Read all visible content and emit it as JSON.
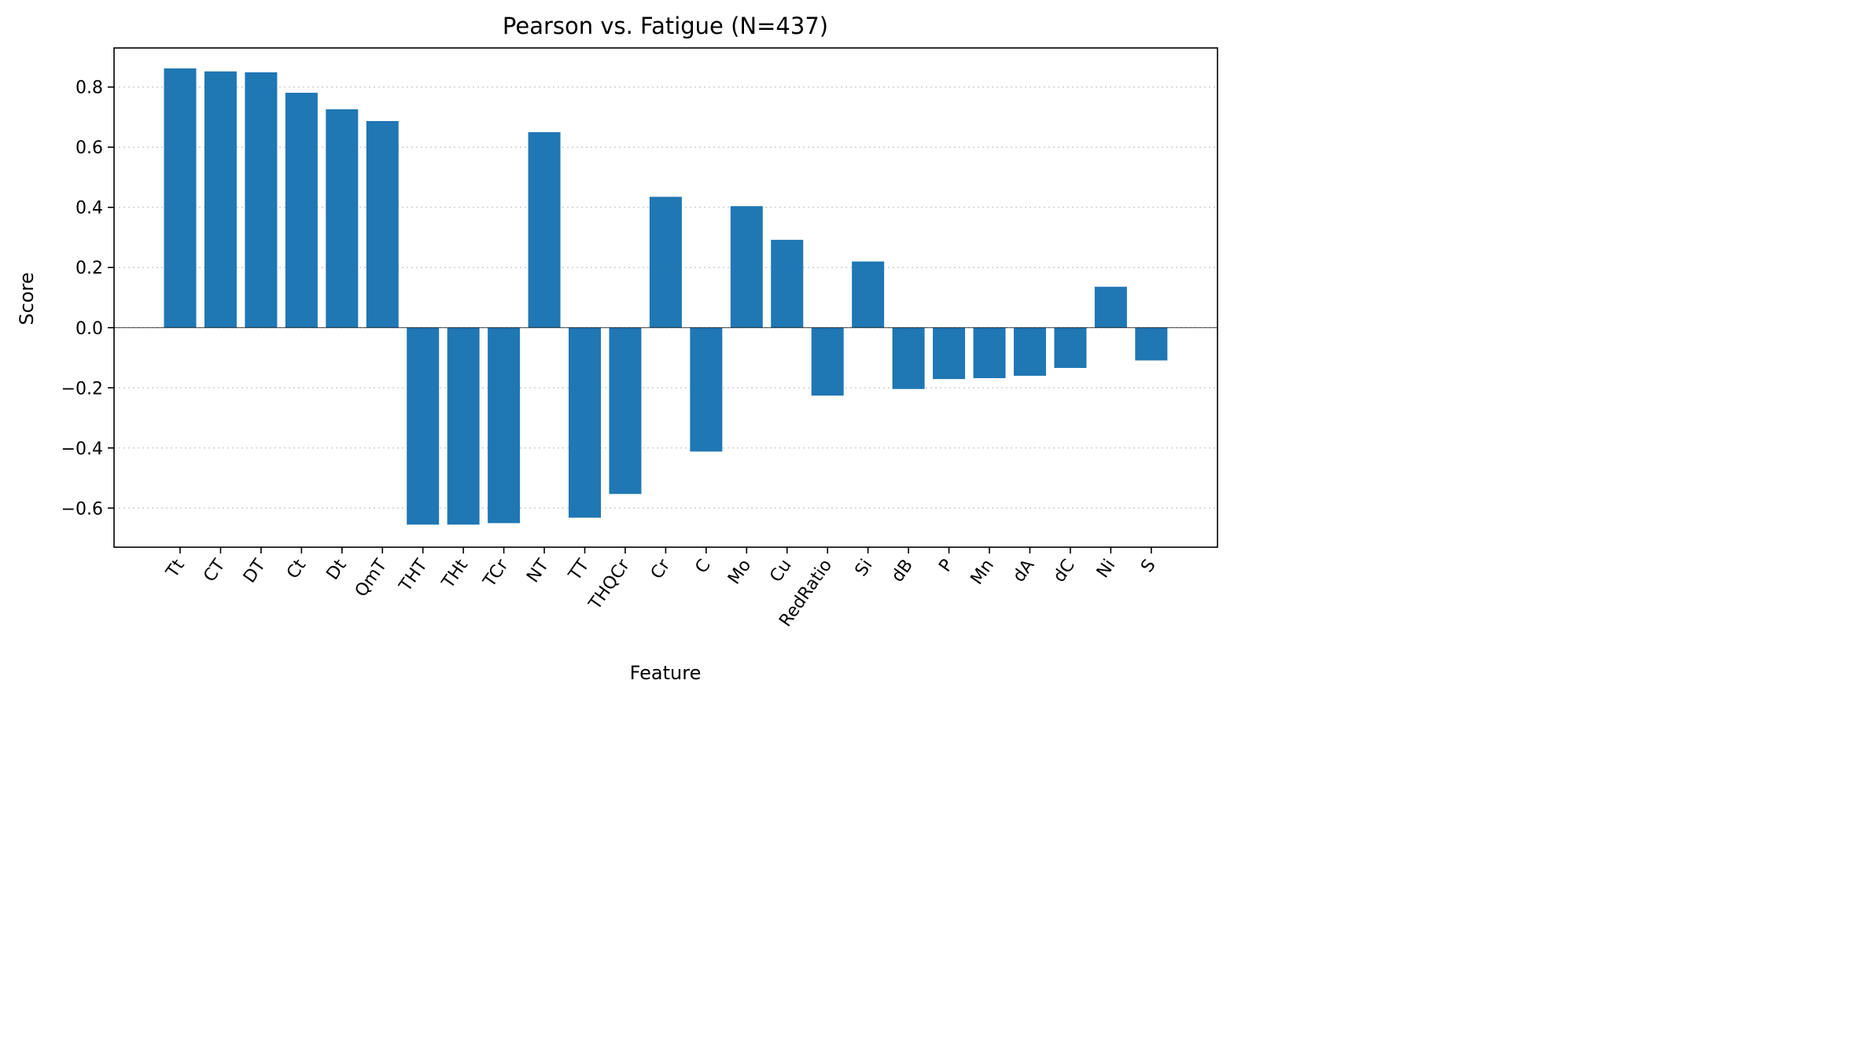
{
  "chart_data": {
    "type": "bar",
    "title": "Pearson vs. Fatigue  (N=437)",
    "xlabel": "Feature",
    "ylabel": "Score",
    "ylim": [
      -0.73,
      0.93
    ],
    "yticks": [
      -0.6,
      -0.4,
      -0.2,
      0.0,
      0.2,
      0.4,
      0.6,
      0.8
    ],
    "ytick_labels": [
      "−0.6",
      "−0.4",
      "−0.2",
      "0.0",
      "0.2",
      "0.4",
      "0.6",
      "0.8"
    ],
    "grid": "y, dotted",
    "bar_color": "#1f77b4",
    "categories": [
      "Tt",
      "CT",
      "DT",
      "Ct",
      "Dt",
      "QmT",
      "THT",
      "THt",
      "TCr",
      "NT",
      "TT",
      "THQCr",
      "Cr",
      "C",
      "Mo",
      "Cu",
      "RedRatio",
      "Si",
      "dB",
      "P",
      "Mn",
      "dA",
      "dC",
      "Ni",
      "S"
    ],
    "values": [
      0.862,
      0.852,
      0.849,
      0.781,
      0.726,
      0.687,
      -0.655,
      -0.655,
      -0.65,
      0.65,
      -0.632,
      -0.553,
      0.435,
      -0.412,
      0.404,
      0.292,
      -0.226,
      0.22,
      -0.204,
      -0.171,
      -0.168,
      -0.16,
      -0.134,
      0.136,
      -0.109
    ]
  }
}
